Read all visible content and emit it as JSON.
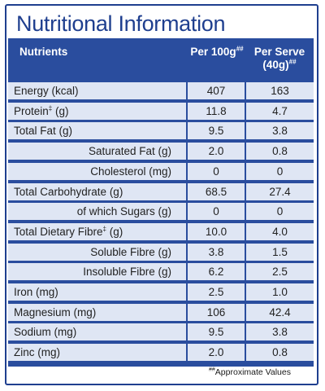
{
  "title": "Nutritional Information",
  "header": {
    "nutrients": "Nutrients",
    "per_100g": "Per 100g",
    "per_100g_mark": "##",
    "per_serve_line1": "Per Serve",
    "per_serve_line2": "(40g)",
    "per_serve_mark": "##"
  },
  "rows": [
    {
      "name": "Energy (kcal)",
      "mark": "",
      "unit": "",
      "per_100g": "407",
      "per_serve": "163",
      "indent": false
    },
    {
      "name": "Protein",
      "mark": "‡",
      "unit": " (g)",
      "per_100g": "11.8",
      "per_serve": "4.7",
      "indent": false
    },
    {
      "name": "Total Fat (g)",
      "mark": "",
      "unit": "",
      "per_100g": "9.5",
      "per_serve": "3.8",
      "indent": false
    },
    {
      "name": "Saturated Fat (g)",
      "mark": "",
      "unit": "",
      "per_100g": "2.0",
      "per_serve": "0.8",
      "indent": true
    },
    {
      "name": "Cholesterol (mg)",
      "mark": "",
      "unit": "",
      "per_100g": "0",
      "per_serve": "0",
      "indent": true
    },
    {
      "name": "Total Carbohydrate (g)",
      "mark": "",
      "unit": "",
      "per_100g": "68.5",
      "per_serve": "27.4",
      "indent": false
    },
    {
      "name": "of which Sugars (g)",
      "mark": "",
      "unit": "",
      "per_100g": "0",
      "per_serve": "0",
      "indent": true
    },
    {
      "name": "Total Dietary Fibre",
      "mark": "‡",
      "unit": " (g)",
      "per_100g": "10.0",
      "per_serve": "4.0",
      "indent": false
    },
    {
      "name": "Soluble Fibre (g)",
      "mark": "",
      "unit": "",
      "per_100g": "3.8",
      "per_serve": "1.5",
      "indent": true
    },
    {
      "name": "Insoluble Fibre (g)",
      "mark": "",
      "unit": "",
      "per_100g": "6.2",
      "per_serve": "2.5",
      "indent": true
    },
    {
      "name": "Iron (mg)",
      "mark": "",
      "unit": "",
      "per_100g": "2.5",
      "per_serve": "1.0",
      "indent": false
    },
    {
      "name": "Magnesium (mg)",
      "mark": "",
      "unit": "",
      "per_100g": "106",
      "per_serve": "42.4",
      "indent": false
    },
    {
      "name": "Sodium (mg)",
      "mark": "",
      "unit": "",
      "per_100g": "9.5",
      "per_serve": "3.8",
      "indent": false
    },
    {
      "name": "Zinc (mg)",
      "mark": "",
      "unit": "",
      "per_100g": "2.0",
      "per_serve": "0.8",
      "indent": false
    }
  ],
  "footnote": {
    "mark": "##",
    "text": "Approximate Values"
  },
  "colors": {
    "brand_blue": "#2a4d9e",
    "title_blue": "#1f3f8f",
    "row_fill": "#dfe6f4"
  }
}
